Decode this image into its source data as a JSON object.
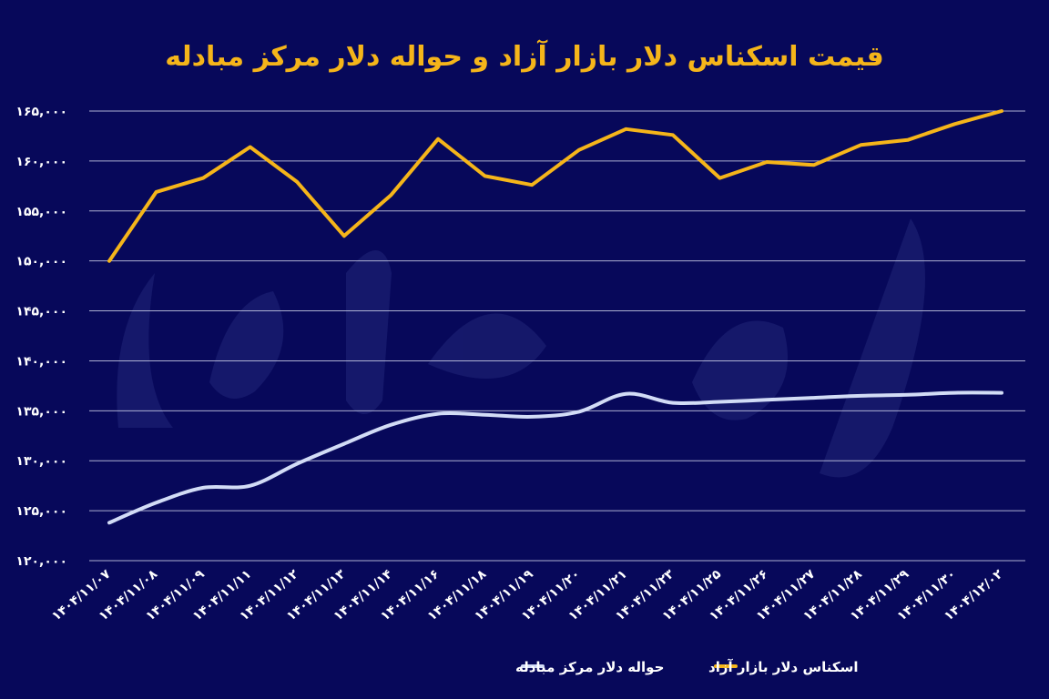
{
  "chart_data": {
    "type": "line",
    "title": "قیمت اسکناس دلار بازار آزاد و حواله دلار مرکز مبادله",
    "xlabel": "",
    "ylabel": "",
    "categories": [
      "۱۴۰۴/۱۱/۰۷",
      "۱۴۰۴/۱۱/۰۸",
      "۱۴۰۴/۱۱/۰۹",
      "۱۴۰۴/۱۱/۱۱",
      "۱۴۰۴/۱۱/۱۲",
      "۱۴۰۴/۱۱/۱۳",
      "۱۴۰۴/۱۱/۱۴",
      "۱۴۰۴/۱۱/۱۶",
      "۱۴۰۴/۱۱/۱۸",
      "۱۴۰۴/۱۱/۱۹",
      "۱۴۰۴/۱۱/۲۰",
      "۱۴۰۴/۱۱/۲۱",
      "۱۴۰۴/۱۱/۲۳",
      "۱۴۰۴/۱۱/۲۵",
      "۱۴۰۴/۱۱/۲۶",
      "۱۴۰۴/۱۱/۲۷",
      "۱۴۰۴/۱۱/۲۸",
      "۱۴۰۴/۱۱/۲۹",
      "۱۴۰۴/۱۱/۳۰",
      "۱۴۰۴/۱۲/۰۲"
    ],
    "series": [
      {
        "name": "اسکناس دلار بازار آزاد",
        "color": "#f5b51a",
        "values": [
          150000,
          156900,
          158300,
          161400,
          157900,
          152500,
          156600,
          162200,
          158500,
          157600,
          161100,
          163200,
          162600,
          158300,
          159900,
          159600,
          161600,
          162100,
          163700,
          165000
        ]
      },
      {
        "name": "حواله دلار مرکز مبادله",
        "color": "#d2dcf6",
        "values": [
          123800,
          125800,
          127300,
          127500,
          129700,
          131700,
          133600,
          134700,
          134600,
          134400,
          134900,
          136700,
          135800,
          135900,
          136100,
          136300,
          136500,
          136600,
          136800,
          136800
        ]
      }
    ],
    "yticks": [
      120000,
      125000,
      130000,
      135000,
      140000,
      145000,
      150000,
      155000,
      160000,
      165000
    ],
    "ytick_labels": [
      "۱۲۰,۰۰۰",
      "۱۲۵,۰۰۰",
      "۱۳۰,۰۰۰",
      "۱۳۵,۰۰۰",
      "۱۴۰,۰۰۰",
      "۱۴۵,۰۰۰",
      "۱۵۰,۰۰۰",
      "۱۵۵,۰۰۰",
      "۱۶۰,۰۰۰",
      "۱۶۵,۰۰۰"
    ],
    "ylim": [
      120000,
      165000
    ],
    "grid": true,
    "legend_position": "bottom-center",
    "colors": {
      "background": "#07085a",
      "title": "#f5b51a",
      "text": "#ffffff",
      "grid": "#c9cde6"
    },
    "watermark": "دنیای اقتصاد"
  }
}
